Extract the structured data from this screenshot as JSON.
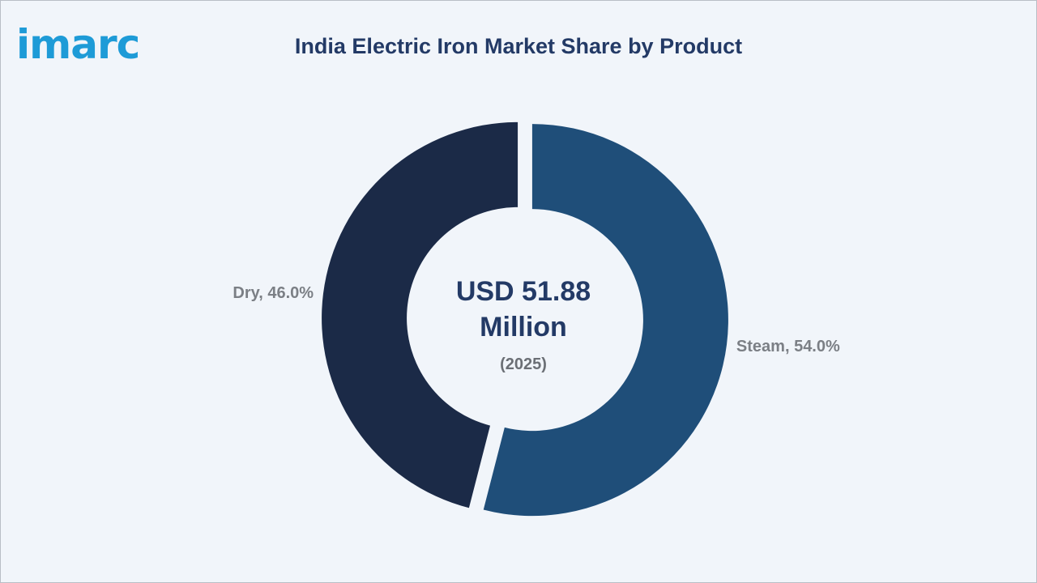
{
  "brand": {
    "logo_text": "imarc",
    "color": "#1e9bd7"
  },
  "chart_data": {
    "type": "pie",
    "title": "India Electric Iron Market Share by Product",
    "donut": true,
    "center_label": {
      "value_line1": "USD 51.88",
      "value_line2": "Million",
      "year": "(2025)"
    },
    "slices": [
      {
        "name": "Steam",
        "value": 54.0,
        "label": "Steam, 54.0%",
        "color": "#1f4e79"
      },
      {
        "name": "Dry",
        "value": 46.0,
        "label": "Dry, 46.0%",
        "color": "#1b2a47"
      }
    ],
    "legend": "none"
  }
}
